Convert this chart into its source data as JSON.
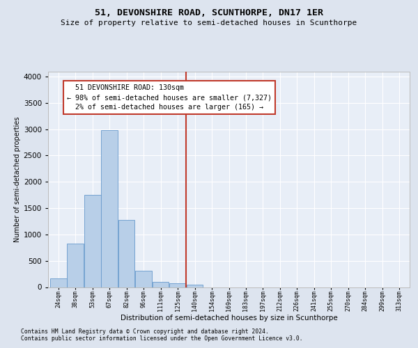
{
  "title": "51, DEVONSHIRE ROAD, SCUNTHORPE, DN17 1ER",
  "subtitle": "Size of property relative to semi-detached houses in Scunthorpe",
  "xlabel": "Distribution of semi-detached houses by size in Scunthorpe",
  "ylabel": "Number of semi-detached properties",
  "footnote1": "Contains HM Land Registry data © Crown copyright and database right 2024.",
  "footnote2": "Contains public sector information licensed under the Open Government Licence v3.0.",
  "property_label": "51 DEVONSHIRE ROAD: 130sqm",
  "smaller_pct": 98,
  "smaller_count": 7327,
  "larger_pct": 2,
  "larger_count": 165,
  "bin_labels": [
    "24sqm",
    "38sqm",
    "53sqm",
    "67sqm",
    "82sqm",
    "96sqm",
    "111sqm",
    "125sqm",
    "140sqm",
    "154sqm",
    "169sqm",
    "183sqm",
    "197sqm",
    "212sqm",
    "226sqm",
    "241sqm",
    "255sqm",
    "270sqm",
    "284sqm",
    "299sqm",
    "313sqm"
  ],
  "bin_left_edges": [
    17,
    31,
    45,
    59,
    73,
    87,
    101,
    115,
    129,
    143,
    157,
    171,
    185,
    199,
    213,
    227,
    241,
    255,
    269,
    283,
    297
  ],
  "bin_width": 14,
  "bar_values": [
    170,
    830,
    1750,
    2980,
    1280,
    310,
    100,
    70,
    40,
    0,
    0,
    0,
    0,
    0,
    0,
    0,
    0,
    0,
    0,
    0,
    0
  ],
  "bar_color": "#b8cfe8",
  "bar_edge_color": "#6699cc",
  "vline_x": 129,
  "vline_color": "#c0392b",
  "annotation_box_color": "#c0392b",
  "ylim": [
    0,
    4100
  ],
  "yticks": [
    0,
    500,
    1000,
    1500,
    2000,
    2500,
    3000,
    3500,
    4000
  ],
  "bg_color": "#dde4ef",
  "plot_bg_color": "#e8eef7",
  "title_fontsize": 9.5,
  "subtitle_fontsize": 8.0,
  "footnote_fontsize": 5.8
}
